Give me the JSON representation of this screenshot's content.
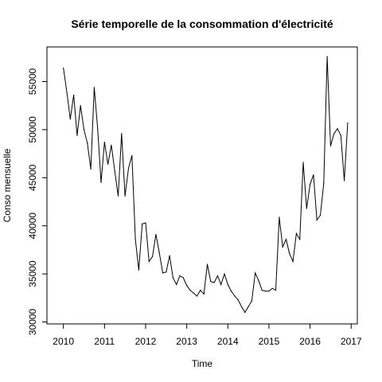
{
  "chart_data": {
    "type": "line",
    "title": "Série temporelle de la consommation d'électricité",
    "xlabel": "Time",
    "ylabel": "Conso mensuelle",
    "xlim": [
      2009.6,
      2017.15
    ],
    "ylim": [
      29800,
      58600
    ],
    "grid": false,
    "legend": "none",
    "x_ticks": [
      2010,
      2011,
      2012,
      2013,
      2014,
      2015,
      2016,
      2017
    ],
    "y_ticks": [
      30000,
      35000,
      40000,
      45000,
      50000,
      55000
    ],
    "x_tick_labels": [
      "2010",
      "2011",
      "2012",
      "2013",
      "2014",
      "2015",
      "2016",
      "2017"
    ],
    "y_tick_labels": [
      "30000",
      "35000",
      "40000",
      "45000",
      "50000",
      "55000"
    ],
    "x_start": 2010,
    "x_step": 0.0833333333,
    "values": [
      56400,
      53900,
      51100,
      53600,
      49400,
      52500,
      50000,
      48600,
      45900,
      54400,
      50100,
      44500,
      48700,
      46400,
      48400,
      45700,
      43100,
      49600,
      43100,
      46000,
      47300,
      38600,
      35400,
      40200,
      40300,
      36300,
      36800,
      39100,
      37200,
      35100,
      35200,
      36900,
      34600,
      33900,
      34800,
      34600,
      33800,
      33300,
      33000,
      32700,
      33300,
      32900,
      36000,
      34200,
      34100,
      34800,
      33900,
      35000,
      33900,
      33200,
      32700,
      32300,
      31600,
      31000,
      31600,
      32200,
      35100,
      34300,
      33300,
      33200,
      33200,
      33500,
      33300,
      40900,
      37800,
      38600,
      37100,
      36300,
      39200,
      38600,
      46600,
      41800,
      44300,
      45300,
      40600,
      41100,
      44400,
      57600,
      48300,
      49600,
      50100,
      49400,
      44700,
      50700
    ]
  }
}
